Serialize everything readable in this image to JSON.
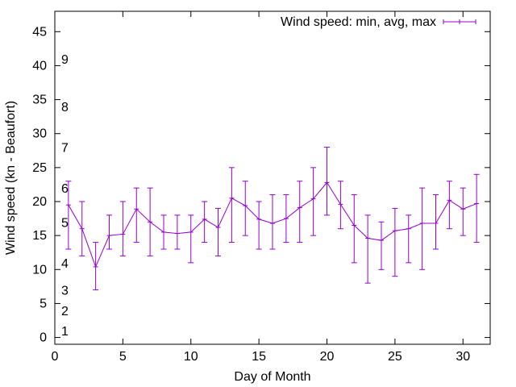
{
  "chart_data": {
    "type": "line",
    "title": "",
    "xlabel": "Day of Month",
    "ylabel": "Wind speed (kn - Beaufort)",
    "xlim": [
      0,
      32
    ],
    "ylim": [
      -1,
      48
    ],
    "x_ticks": [
      0,
      5,
      10,
      15,
      20,
      25,
      30
    ],
    "y_ticks": [
      0,
      5,
      10,
      15,
      20,
      25,
      30,
      35,
      40,
      45
    ],
    "grid": false,
    "legend_position": "top-right",
    "series": [
      {
        "name": "Wind speed: min, avg, max",
        "color": "#9400d3",
        "x": [
          1,
          2,
          3,
          4,
          5,
          6,
          7,
          8,
          9,
          10,
          11,
          12,
          13,
          14,
          15,
          16,
          17,
          18,
          19,
          20,
          21,
          22,
          23,
          24,
          25,
          26,
          27,
          28,
          29,
          30,
          31
        ],
        "avg": [
          19.5,
          16,
          10.4,
          15,
          15.2,
          18.9,
          17,
          15.5,
          15.3,
          15.5,
          17.4,
          16.2,
          20.5,
          19.4,
          17.4,
          16.8,
          17.5,
          19.1,
          20.4,
          22.8,
          19.6,
          16.5,
          14.6,
          14.3,
          15.7,
          16,
          16.8,
          16.8,
          20.2,
          18.9,
          19.7
        ],
        "min": [
          13,
          12,
          7,
          13,
          12,
          14,
          12,
          13,
          13,
          11,
          14,
          12,
          14,
          15,
          13,
          13,
          14,
          14,
          15,
          18,
          16,
          11,
          8,
          10,
          9,
          11,
          10,
          13,
          16,
          15,
          14
        ],
        "max": [
          23,
          20,
          14,
          18,
          20,
          22,
          22,
          18,
          18,
          18,
          20,
          19,
          25,
          23,
          20,
          21,
          21,
          23,
          25,
          28,
          23,
          21,
          18,
          17,
          19,
          18,
          22,
          21,
          23,
          22,
          24
        ]
      }
    ],
    "beaufort_labels": [
      {
        "label": "1",
        "value": 1
      },
      {
        "label": "2",
        "value": 4
      },
      {
        "label": "3",
        "value": 7
      },
      {
        "label": "4",
        "value": 11
      },
      {
        "label": "5",
        "value": 17
      },
      {
        "label": "6",
        "value": 22
      },
      {
        "label": "7",
        "value": 28
      },
      {
        "label": "8",
        "value": 34
      },
      {
        "label": "9",
        "value": 41
      }
    ]
  }
}
